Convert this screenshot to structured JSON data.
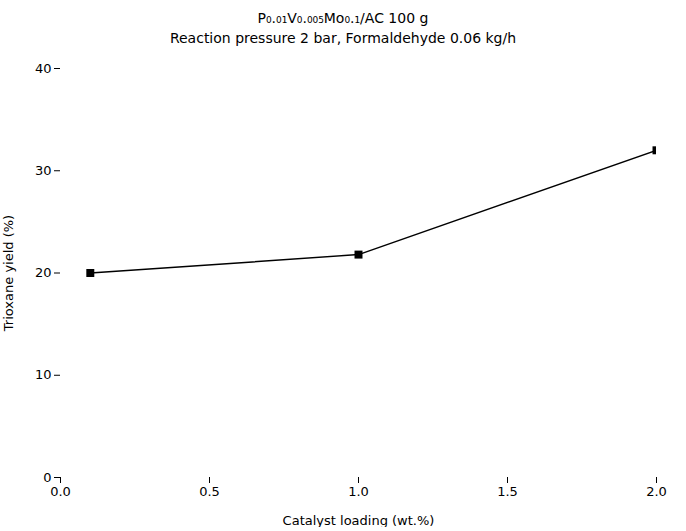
{
  "chart_data": {
    "type": "line",
    "title": "P₀.₀₁V₀.₀₀₅Mo₀.₁/AC 100 g",
    "subtitle": "Reaction pressure 2 bar, Formaldehyde 0.06 kg/h",
    "x_label": "Catalyst loading (wt.%)",
    "y_label": "Trioxane yield (%)",
    "x": [
      0.1,
      1.0,
      2.0
    ],
    "values": [
      20.0,
      21.8,
      32.0
    ],
    "xlim": [
      0.0,
      2.0
    ],
    "ylim": [
      0,
      40
    ],
    "xticks": [
      {
        "value": 0.0,
        "label": "0.0"
      },
      0.5,
      {
        "value": 1.0,
        "label": "1.0"
      },
      1.5,
      {
        "value": 2.0,
        "label": "2.0"
      }
    ],
    "yticks": [
      0,
      10,
      20,
      30,
      40
    ],
    "marker": "square",
    "grid": false
  }
}
